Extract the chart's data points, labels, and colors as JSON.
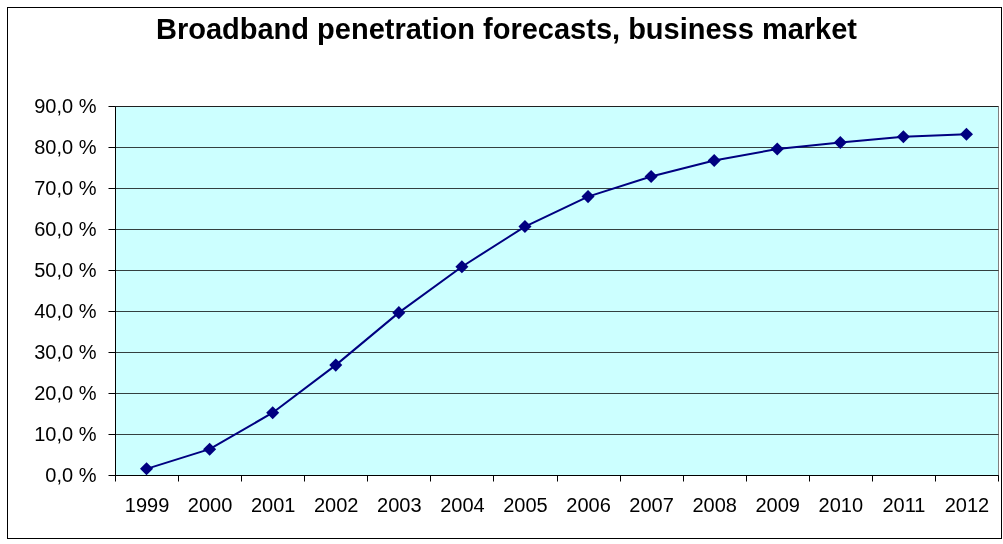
{
  "chart_data": {
    "type": "line",
    "title": "Broadband penetration forecasts, business market",
    "categories": [
      "1999",
      "2000",
      "2001",
      "2002",
      "2003",
      "2004",
      "2005",
      "2006",
      "2007",
      "2008",
      "2009",
      "2010",
      "2011",
      "2012"
    ],
    "series": [
      {
        "color": "#000080",
        "values": [
          1.5,
          6.3,
          15.2,
          26.8,
          39.6,
          50.8,
          60.6,
          67.9,
          72.8,
          76.7,
          79.5,
          81.1,
          82.5,
          83.1
        ]
      }
    ],
    "ylim": [
      0,
      90
    ],
    "yticks": [
      {
        "value": 0,
        "label": "0,0 %"
      },
      {
        "value": 10,
        "label": "10,0 %"
      },
      {
        "value": 20,
        "label": "20,0 %"
      },
      {
        "value": 30,
        "label": "30,0 %"
      },
      {
        "value": 40,
        "label": "40,0 %"
      },
      {
        "value": 50,
        "label": "50,0 %"
      },
      {
        "value": 60,
        "label": "60,0 %"
      },
      {
        "value": 70,
        "label": "70,0 %"
      },
      {
        "value": 80,
        "label": "80,0 %"
      },
      {
        "value": 90,
        "label": "90,0 %"
      }
    ],
    "grid": "y",
    "marker": "diamond",
    "line_style": "solid"
  }
}
